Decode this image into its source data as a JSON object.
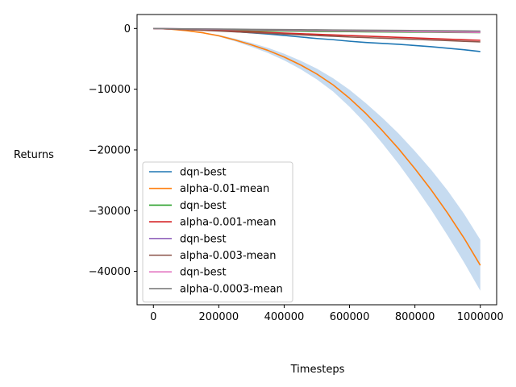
{
  "chart_data": {
    "type": "line",
    "xlabel": "Timesteps",
    "ylabel": "Returns",
    "xlim": [
      -50000,
      1050000
    ],
    "ylim": [
      -45500,
      2300
    ],
    "xticks": [
      0,
      200000,
      400000,
      600000,
      800000,
      1000000
    ],
    "xtick_labels": [
      "0",
      "200000",
      "400000",
      "600000",
      "800000",
      "1000000"
    ],
    "yticks": [
      0,
      -10000,
      -20000,
      -30000,
      -40000
    ],
    "ytick_labels": [
      "0",
      "−10000",
      "−20000",
      "−30000",
      "−40000"
    ],
    "legend_position": "lower-left",
    "grid": false,
    "x": [
      0,
      50000,
      100000,
      150000,
      200000,
      250000,
      300000,
      350000,
      400000,
      450000,
      500000,
      550000,
      600000,
      650000,
      700000,
      750000,
      800000,
      850000,
      900000,
      950000,
      1000000
    ],
    "series": [
      {
        "name": "dqn-best",
        "color": "#1f77b4",
        "values": [
          0,
          -80,
          -160,
          -250,
          -350,
          -520,
          -720,
          -920,
          -1150,
          -1400,
          -1650,
          -1850,
          -2100,
          -2300,
          -2450,
          -2600,
          -2800,
          -3000,
          -3250,
          -3500,
          -3800
        ]
      },
      {
        "name": "alpha-0.01-mean",
        "color": "#ff7f0e",
        "values": [
          0,
          -100,
          -350,
          -700,
          -1200,
          -1900,
          -2700,
          -3600,
          -4700,
          -6000,
          -7500,
          -9300,
          -11500,
          -14000,
          -16800,
          -19800,
          -23100,
          -26600,
          -30400,
          -34500,
          -39000
        ],
        "band_low": [
          0,
          -110,
          -390,
          -780,
          -1340,
          -2120,
          -3020,
          -4020,
          -5250,
          -6700,
          -8380,
          -10400,
          -12900,
          -15700,
          -18900,
          -22300,
          -26000,
          -29900,
          -34100,
          -38500,
          -43200
        ],
        "band_high": [
          0,
          -90,
          -310,
          -620,
          -1060,
          -1680,
          -2380,
          -3180,
          -4150,
          -5300,
          -6620,
          -8200,
          -10100,
          -12300,
          -14700,
          -17300,
          -20200,
          -23300,
          -26700,
          -30500,
          -34800
        ],
        "band_color": "#a8c8e8"
      },
      {
        "name": "dqn-best",
        "color": "#2ca02c",
        "values": [
          0,
          -60,
          -120,
          -180,
          -240,
          -300,
          -350,
          -390,
          -420,
          -450,
          -480,
          -500,
          -520,
          -540,
          -560,
          -580,
          -600,
          -620,
          -640,
          -660,
          -680
        ]
      },
      {
        "name": "alpha-0.001-mean",
        "color": "#d62728",
        "values": [
          0,
          -80,
          -170,
          -260,
          -350,
          -450,
          -550,
          -650,
          -760,
          -860,
          -960,
          -1060,
          -1160,
          -1260,
          -1360,
          -1460,
          -1560,
          -1660,
          -1760,
          -1860,
          -1950
        ]
      },
      {
        "name": "dqn-best",
        "color": "#9467bd",
        "values": [
          0,
          -40,
          -80,
          -110,
          -140,
          -170,
          -200,
          -230,
          -260,
          -290,
          -320,
          -340,
          -360,
          -380,
          -400,
          -420,
          -440,
          -460,
          -480,
          -500,
          -520
        ]
      },
      {
        "name": "alpha-0.003-mean",
        "color": "#8c564b",
        "values": [
          0,
          -80,
          -180,
          -300,
          -420,
          -550,
          -680,
          -800,
          -920,
          -1040,
          -1160,
          -1280,
          -1400,
          -1500,
          -1600,
          -1700,
          -1800,
          -1900,
          -2000,
          -2100,
          -2200
        ]
      },
      {
        "name": "dqn-best",
        "color": "#e377c2",
        "values": [
          0,
          -30,
          -60,
          -90,
          -120,
          -160,
          -200,
          -240,
          -280,
          -310,
          -340,
          -370,
          -400,
          -430,
          -460,
          -490,
          -520,
          -550,
          -580,
          -610,
          -640
        ]
      },
      {
        "name": "alpha-0.0003-mean",
        "color": "#7f7f7f",
        "values": [
          0,
          -30,
          -60,
          -80,
          -100,
          -120,
          -140,
          -160,
          -180,
          -200,
          -220,
          -240,
          -260,
          -280,
          -300,
          -320,
          -340,
          -360,
          -380,
          -400,
          -420
        ]
      }
    ]
  }
}
